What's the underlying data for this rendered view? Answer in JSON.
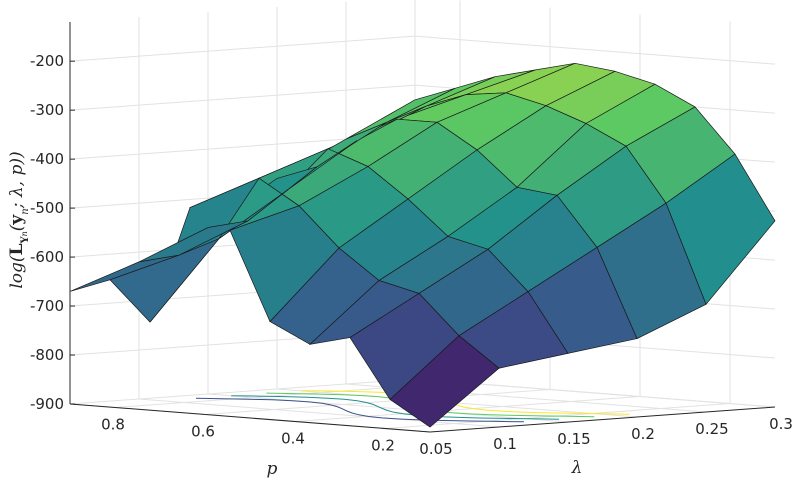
{
  "chart_data": {
    "type": "surface",
    "title": "",
    "xlabel": "p",
    "ylabel": "λ",
    "zlabel": "log(L_{Y_n}(y_n; λ, p))",
    "x_axis": {
      "name": "p",
      "ticks": [
        "0.8",
        "0.6",
        "0.4",
        "0.2"
      ],
      "range": [
        0.1,
        0.9
      ]
    },
    "y_axis": {
      "name": "λ",
      "ticks": [
        "0.05",
        "0.1",
        "0.15",
        "0.2",
        "0.25",
        "0.3"
      ],
      "range": [
        0.05,
        0.3
      ]
    },
    "z_axis": {
      "ticks": [
        "-200",
        "-300",
        "-400",
        "-500",
        "-600",
        "-700",
        "-800",
        "-900"
      ],
      "range": [
        -900,
        -120
      ]
    },
    "grid": true,
    "colormap": [
      "#440154",
      "#3b528b",
      "#21908d",
      "#5dc962",
      "#fde725"
    ],
    "surface": {
      "rows_desc": "lambda ascending from 0.05 to 0.3 (front/near edge first)",
      "cols_desc": "p descending from 0.9 (left) to 0.1 (right)",
      "z": [
        [
          -670,
          -640,
          -720,
          -480,
          -520,
          -700,
          -740,
          -720,
          -840,
          -890
        ],
        [
          -620,
          -600,
          -560,
          -430,
          -480,
          -560,
          -620,
          -640,
          -720,
          -780
        ],
        [
          -560,
          -540,
          -470,
          -380,
          -410,
          -470,
          -540,
          -560,
          -640,
          -760
        ],
        [
          -470,
          -440,
          -380,
          -330,
          -330,
          -380,
          -450,
          -460,
          -560,
          -740
        ],
        [
          -400,
          -360,
          -320,
          -290,
          -280,
          -300,
          -330,
          -370,
          -480,
          -680
        ],
        [
          -330,
          -300,
          -270,
          -250,
          -230,
          -240,
          -260,
          -300,
          -390,
          -520
        ]
      ]
    }
  }
}
